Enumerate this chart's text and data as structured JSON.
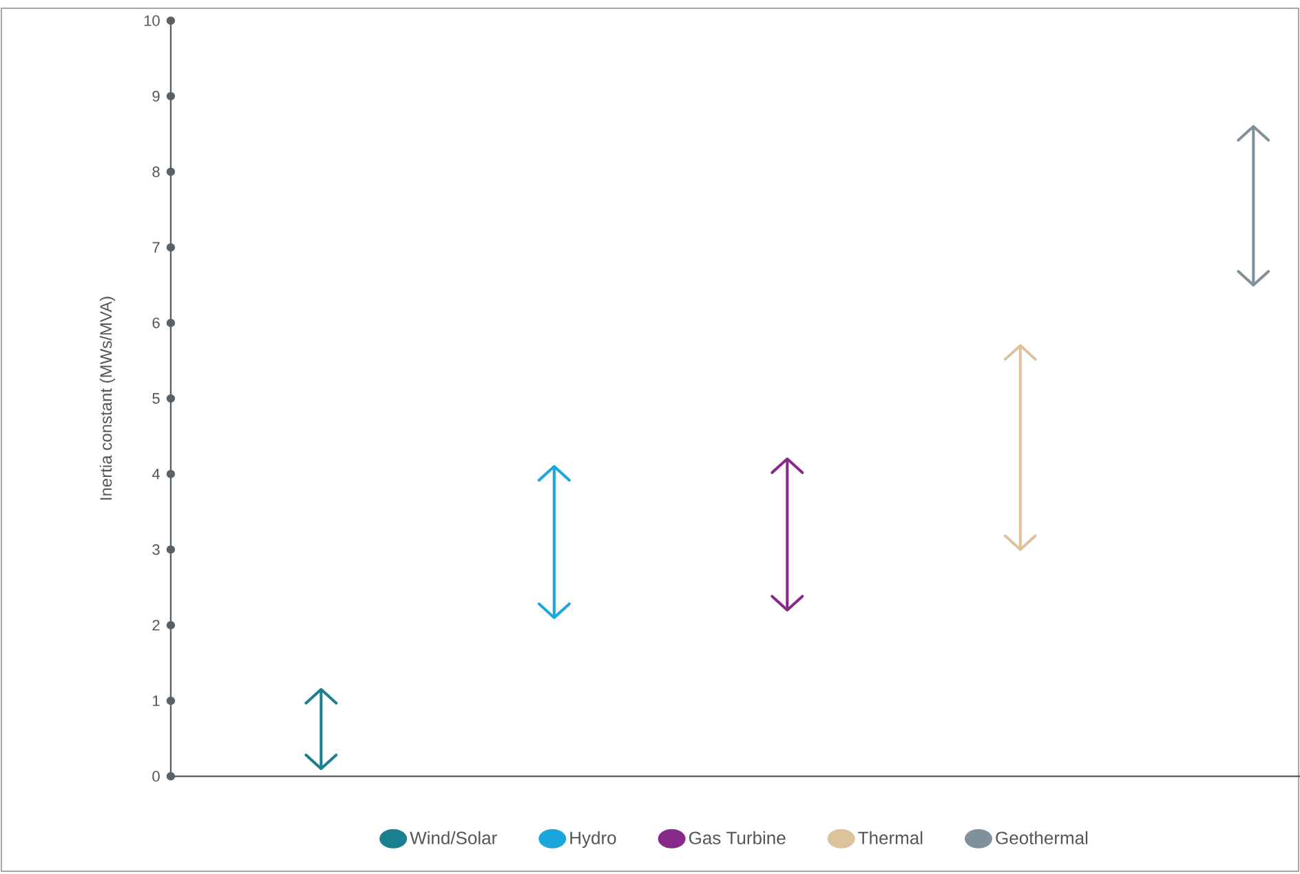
{
  "chart_data": {
    "type": "bar",
    "ylabel": "Inertia constant (MWs/MVA)",
    "categories": [
      null,
      null,
      null,
      null,
      null
    ],
    "series": [
      {
        "name": "Wind/Solar",
        "color": "#1a7f8e",
        "values": [
          1.05,
          null,
          null,
          null,
          null
        ],
        "base": [
          0.1,
          null,
          null,
          null,
          null
        ]
      },
      {
        "name": "Hydro",
        "color": "#1aa7dc",
        "values": [
          null,
          2.0,
          null,
          null,
          null
        ],
        "base": [
          null,
          2.1,
          null,
          null,
          null
        ]
      },
      {
        "name": "Gas Turbine",
        "color": "#862a8a",
        "values": [
          null,
          null,
          2.0,
          null,
          null
        ],
        "base": [
          null,
          null,
          2.2,
          null,
          null
        ]
      },
      {
        "name": "Thermal",
        "color": "#dcc39c",
        "values": [
          null,
          null,
          null,
          2.7,
          null
        ],
        "base": [
          null,
          null,
          null,
          3.0,
          null
        ]
      },
      {
        "name": "Geothermal",
        "color": "#7f929c",
        "values": [
          null,
          null,
          null,
          null,
          2.1
        ],
        "base": [
          null,
          null,
          null,
          null,
          6.5
        ]
      }
    ],
    "ylim": [
      0,
      10
    ],
    "yticks": [
      0,
      1,
      2,
      3,
      4,
      5,
      6,
      7,
      8,
      9,
      10
    ],
    "grid": false,
    "legend": "bottom",
    "tick_labels": "y"
  }
}
